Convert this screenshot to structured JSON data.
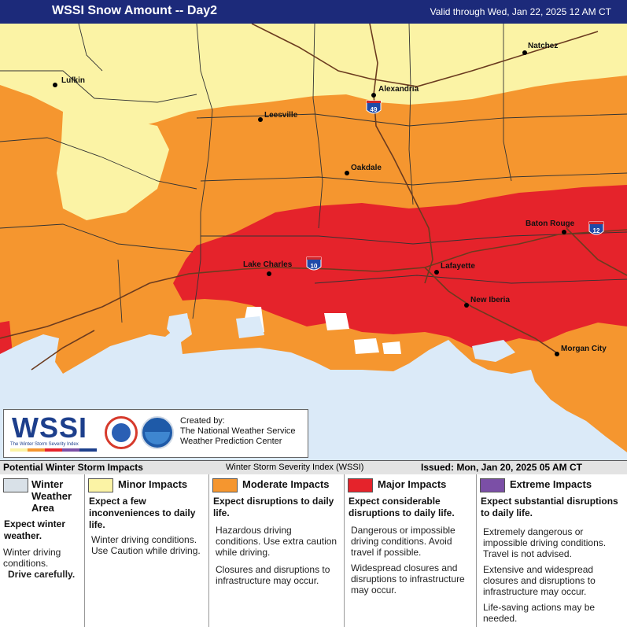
{
  "header": {
    "title": "WSSI Snow Amount -- Day2",
    "valid": "Valid through Wed, Jan 22, 2025 12 AM CT"
  },
  "map": {
    "colors": {
      "water": "#dbeaf8",
      "minor": "#fbf3a5",
      "moderate": "#f5962f",
      "major": "#e5232b",
      "winter_area": "#d9e1e8",
      "clear": "#ffffff",
      "road": "#6b3b1f",
      "boundary": "#333333"
    },
    "cities": [
      {
        "name": "Lufkin"
      },
      {
        "name": "Alexandria"
      },
      {
        "name": "Natchez"
      },
      {
        "name": "Leesville"
      },
      {
        "name": "Oakdale"
      },
      {
        "name": "Baton Rouge"
      },
      {
        "name": "Lake Charles"
      },
      {
        "name": "Lafayette"
      },
      {
        "name": "New Iberia"
      },
      {
        "name": "Morgan City"
      }
    ],
    "shields": [
      "49",
      "10",
      "12"
    ]
  },
  "logo": {
    "wssi": "WSSI",
    "subtitle": "The Winter Storm Severity Index",
    "created_line1": "Created by:",
    "created_line2": "The National Weather Service",
    "created_line3": "Weather Prediction Center"
  },
  "legend": {
    "title": "Potential Winter Storm Impacts",
    "index_name": "Winter Storm Severity Index (WSSI)",
    "issued": "Issued: Mon, Jan 20, 2025 05 AM CT",
    "categories": [
      {
        "name_line1": "Winter",
        "name_line2": "Weather",
        "name_line3": "Area",
        "color": "#d9e1e8",
        "description": "Expect winter weather.",
        "items": [
          "Winter driving conditions.",
          "Drive carefully."
        ]
      },
      {
        "name": "Minor Impacts",
        "color": "#fbf3a5",
        "description": "Expect a few inconveniences to daily life.",
        "items": [
          "Winter driving conditions. Use Caution while driving."
        ]
      },
      {
        "name": "Moderate Impacts",
        "color": "#f5962f",
        "description": "Expect disruptions to daily life.",
        "items": [
          "Hazardous driving conditions. Use extra caution while driving.",
          "Closures and disruptions to infrastructure may occur."
        ]
      },
      {
        "name": "Major Impacts",
        "color": "#e5232b",
        "description": "Expect considerable disruptions to daily life.",
        "items": [
          "Dangerous or impossible driving conditions. Avoid travel if possible.",
          "Widespread closures and disruptions to infrastructure may occur."
        ]
      },
      {
        "name": "Extreme Impacts",
        "color": "#7b4fa6",
        "description": "Expect substantial disruptions to daily life.",
        "items": [
          "Extremely dangerous or impossible driving conditions. Travel is not advised.",
          "Extensive and widespread closures and disruptions to infrastructure may occur.",
          "Life-saving actions may be needed."
        ]
      }
    ]
  }
}
